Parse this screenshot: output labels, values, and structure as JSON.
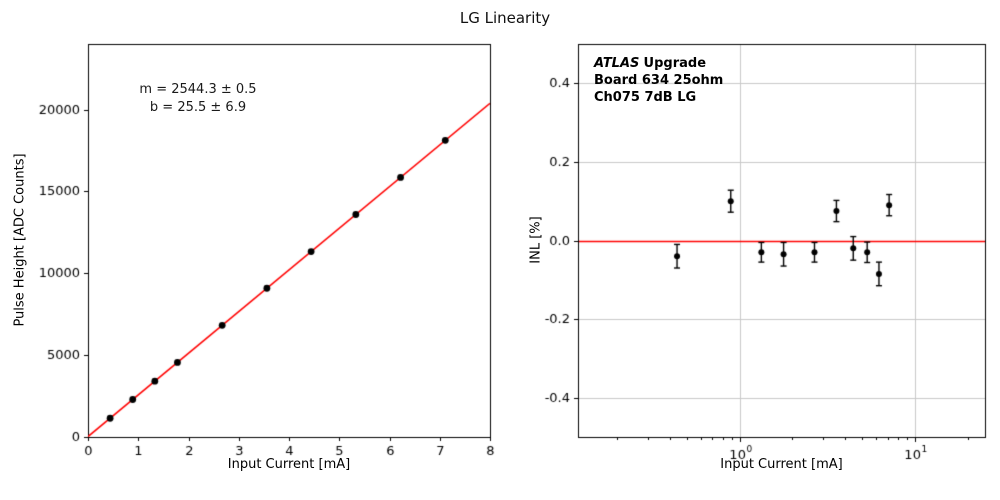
{
  "title": "LG Linearity",
  "colors": {
    "fit_line": "#ff0000",
    "zero_line": "#ff0000",
    "marker": "#000000",
    "grid": "#c9c9c9",
    "axis": "#000000"
  },
  "chart_data": [
    {
      "type": "scatter",
      "name": "pulse-height-vs-current",
      "xlabel": "Input Current [mA]",
      "ylabel": "Pulse Height [ADC Counts]",
      "xscale": "linear",
      "xlim": [
        0,
        8
      ],
      "ylim": [
        0,
        24000
      ],
      "xticks": [
        0,
        1,
        2,
        3,
        4,
        5,
        6,
        7,
        8
      ],
      "yticks": [
        0,
        5000,
        10000,
        15000,
        20000
      ],
      "grid": false,
      "legend": "none",
      "fit": {
        "m": 2544.3,
        "m_err": 0.5,
        "b": 25.5,
        "b_err": 6.9
      },
      "annotation": {
        "line1": "m = 2544.3 ± 0.5",
        "line2": "b = 25.5 ± 6.9"
      },
      "x": [
        0.44,
        0.89,
        1.33,
        1.78,
        2.67,
        3.56,
        4.44,
        5.33,
        6.22,
        7.11
      ],
      "y": [
        1145,
        2290,
        3409,
        4554,
        6819,
        9083,
        11322,
        13587,
        15851,
        18116
      ]
    },
    {
      "type": "scatter",
      "name": "integral-nonlinearity",
      "xlabel": "Input Current [mA]",
      "ylabel": "INL [%]",
      "xscale": "log",
      "xlim": [
        0.12,
        25
      ],
      "ylim": [
        -0.5,
        0.5
      ],
      "yticks": [
        -0.4,
        -0.2,
        0.0,
        0.2,
        0.4
      ],
      "xticks_major": [
        1,
        10
      ],
      "grid": true,
      "legend": "none",
      "zero_line": 0,
      "annotation": {
        "line1_italic": "ATLAS",
        "line1_bold": "Upgrade",
        "line2": "Board 634 25ohm",
        "line3": "Ch075 7dB LG"
      },
      "x": [
        0.44,
        0.89,
        1.33,
        1.78,
        2.67,
        3.56,
        4.44,
        5.33,
        6.22,
        7.11
      ],
      "y": [
        -0.04,
        0.1,
        -0.03,
        -0.035,
        -0.03,
        0.075,
        -0.02,
        -0.03,
        -0.085,
        0.09
      ],
      "yerr": [
        0.03,
        0.028,
        0.025,
        0.03,
        0.025,
        0.027,
        0.03,
        0.026,
        0.03,
        0.027
      ]
    }
  ]
}
